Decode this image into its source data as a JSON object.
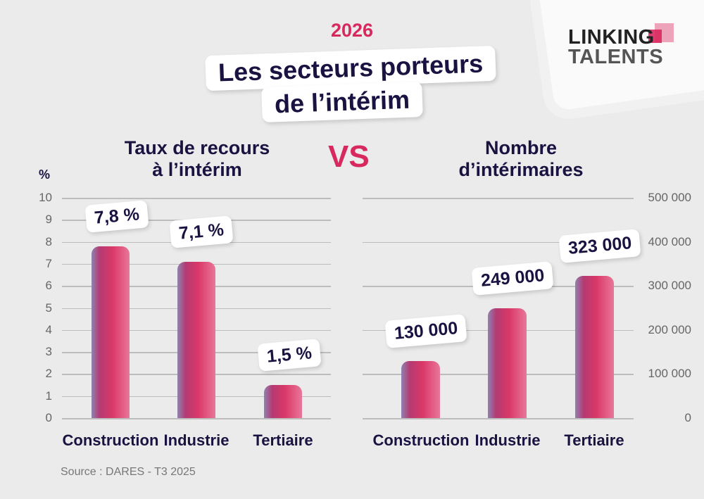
{
  "header": {
    "year": "2026",
    "title_line1": "Les secteurs porteurs",
    "title_line2": "de l’intérim",
    "vs": "VS"
  },
  "logo": {
    "line1": "LINKING",
    "line2": "TALENTS",
    "accent": "#d8295f"
  },
  "source": "Source : DARES - T3 2025",
  "colors": {
    "accent": "#d8295f",
    "text": "#1a1240",
    "background": "#ebebeb"
  },
  "chart_data": [
    {
      "type": "bar",
      "title_line1": "Taux de recours",
      "title_line2": "à l’intérim",
      "ylabel": "%",
      "ylim": [
        0,
        10
      ],
      "yticks": [
        "0",
        "1",
        "2",
        "3",
        "4",
        "5",
        "6",
        "7",
        "8",
        "9",
        "10"
      ],
      "grid": true,
      "categories": [
        "Construction",
        "Industrie",
        "Tertiaire"
      ],
      "values": [
        7.8,
        7.1,
        1.5
      ],
      "data_labels": [
        "7,8 %",
        "7,1 %",
        "1,5 %"
      ]
    },
    {
      "type": "bar",
      "title_line1": "Nombre",
      "title_line2": "d’intérimaires",
      "ylim": [
        0,
        500000
      ],
      "yticks": [
        "0",
        "100 000",
        "200 000",
        "300 000",
        "400 000",
        "500 000"
      ],
      "grid": true,
      "categories": [
        "Construction",
        "Industrie",
        "Tertiaire"
      ],
      "values": [
        130000,
        249000,
        323000
      ],
      "data_labels": [
        "130 000",
        "249 000",
        "323 000"
      ]
    }
  ]
}
